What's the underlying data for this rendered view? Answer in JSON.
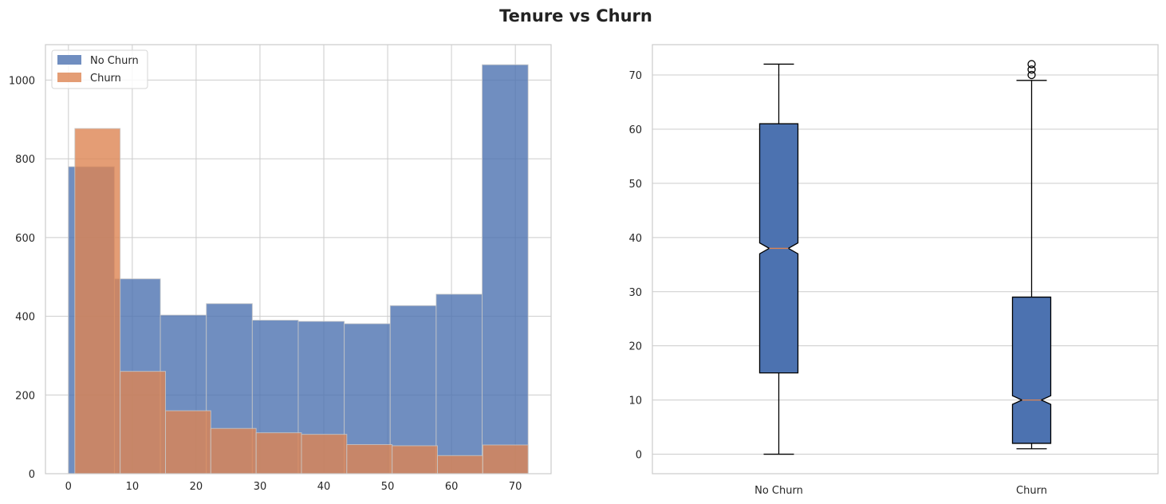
{
  "title": "Tenure vs Churn",
  "colors": {
    "no_churn": "#4c72b0",
    "churn": "#dd8452",
    "grid": "#cccccc",
    "spine": "#cccccc",
    "box_fill": "#4c72b0",
    "median": "#dd8452"
  },
  "chart_data": [
    {
      "type": "histogram",
      "xlim": [
        -3.6,
        75.6
      ],
      "ylim": [
        0,
        1090
      ],
      "xticks": [
        0,
        10,
        20,
        30,
        40,
        50,
        60,
        70
      ],
      "yticks": [
        0,
        200,
        400,
        600,
        800,
        1000
      ],
      "legend": {
        "position": "top-left",
        "entries": [
          "No Churn",
          "Churn"
        ]
      },
      "grid": true,
      "series": [
        {
          "name": "No Churn",
          "bin_edges": [
            0,
            7.2,
            14.4,
            21.6,
            28.8,
            36,
            43.2,
            50.4,
            57.6,
            64.8,
            72
          ],
          "counts": [
            780,
            495,
            403,
            432,
            390,
            387,
            381,
            427,
            456,
            1039
          ]
        },
        {
          "name": "Churn",
          "bin_edges": [
            1,
            8.1,
            15.2,
            22.3,
            29.4,
            36.5,
            43.6,
            50.7,
            57.8,
            64.9,
            72
          ],
          "counts": [
            877,
            260,
            160,
            115,
            104,
            100,
            74,
            71,
            46,
            73
          ]
        }
      ]
    },
    {
      "type": "boxplot",
      "categories": [
        "No Churn",
        "Churn"
      ],
      "ylim": [
        -3.6,
        75.6
      ],
      "yticks": [
        0,
        10,
        20,
        30,
        40,
        50,
        60,
        70
      ],
      "grid": true,
      "notched": true,
      "boxes": [
        {
          "name": "No Churn",
          "whisker_low": 0,
          "q1": 15,
          "median": 38,
          "q3": 61,
          "whisker_high": 72,
          "notch_low": 37,
          "notch_high": 39,
          "outliers": []
        },
        {
          "name": "Churn",
          "whisker_low": 1,
          "q1": 2,
          "median": 10,
          "q3": 29,
          "whisker_high": 69,
          "notch_low": 9.2,
          "notch_high": 10.8,
          "outliers": [
            70,
            71,
            72
          ]
        }
      ]
    }
  ]
}
